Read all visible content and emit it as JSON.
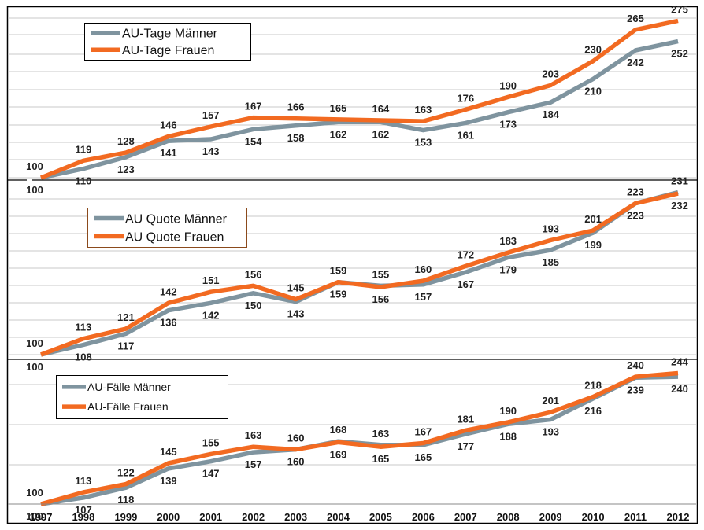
{
  "colors": {
    "men": "#7f949f",
    "women": "#f26a21",
    "grid": "#c8c8c8",
    "frame": "#000000",
    "legend_border": "#000000",
    "legend_border_mid": "#8b4a1c"
  },
  "chart_data": [
    {
      "type": "line",
      "title": "",
      "xlabel": "",
      "ylabel": "",
      "x": [
        "1997",
        "1998",
        "1999",
        "2000",
        "2001",
        "2002",
        "2003",
        "2004",
        "2005",
        "2006",
        "2007",
        "2008",
        "2009",
        "2010",
        "2011",
        "2012"
      ],
      "ylim": [
        100,
        285
      ],
      "grid": true,
      "legend_position": "top-left",
      "series": [
        {
          "name": "AU-Tage Männer",
          "color": "#7f949f",
          "values": [
            100,
            110,
            123,
            141,
            143,
            154,
            158,
            162,
            162,
            153,
            161,
            173,
            184,
            210,
            242,
            252
          ]
        },
        {
          "name": "AU-Tage Frauen",
          "color": "#f26a21",
          "values": [
            100,
            119,
            128,
            146,
            157,
            167,
            166,
            165,
            164,
            163,
            176,
            190,
            203,
            230,
            265,
            275
          ]
        }
      ]
    },
    {
      "type": "line",
      "title": "",
      "xlabel": "",
      "ylabel": "",
      "x": [
        "1997",
        "1998",
        "1999",
        "2000",
        "2001",
        "2002",
        "2003",
        "2004",
        "2005",
        "2006",
        "2007",
        "2008",
        "2009",
        "2010",
        "2011",
        "2012"
      ],
      "ylim": [
        100,
        240
      ],
      "grid": true,
      "legend_position": "top-left",
      "series": [
        {
          "name": "AU Quote Männer",
          "color": "#7f949f",
          "values": [
            100,
            108,
            117,
            136,
            142,
            150,
            143,
            159,
            156,
            157,
            167,
            179,
            185,
            199,
            223,
            232
          ]
        },
        {
          "name": "AU Quote Frauen",
          "color": "#f26a21",
          "values": [
            100,
            113,
            121,
            142,
            151,
            156,
            145,
            159,
            155,
            160,
            172,
            183,
            193,
            201,
            223,
            231
          ]
        }
      ]
    },
    {
      "type": "line",
      "title": "",
      "xlabel": "",
      "ylabel": "",
      "x": [
        "1997",
        "1998",
        "1999",
        "2000",
        "2001",
        "2002",
        "2003",
        "2004",
        "2005",
        "2006",
        "2007",
        "2008",
        "2009",
        "2010",
        "2011",
        "2012"
      ],
      "ylim": [
        100,
        260
      ],
      "grid": true,
      "legend_position": "top-left",
      "series": [
        {
          "name": "AU-Fälle Männer",
          "color": "#7f949f",
          "values": [
            100,
            107,
            118,
            139,
            147,
            157,
            160,
            169,
            165,
            165,
            177,
            188,
            193,
            216,
            239,
            240
          ]
        },
        {
          "name": "AU-Fälle Frauen",
          "color": "#f26a21",
          "values": [
            100,
            113,
            122,
            145,
            155,
            163,
            160,
            168,
            163,
            167,
            181,
            190,
            201,
            218,
            240,
            244
          ]
        }
      ]
    }
  ]
}
